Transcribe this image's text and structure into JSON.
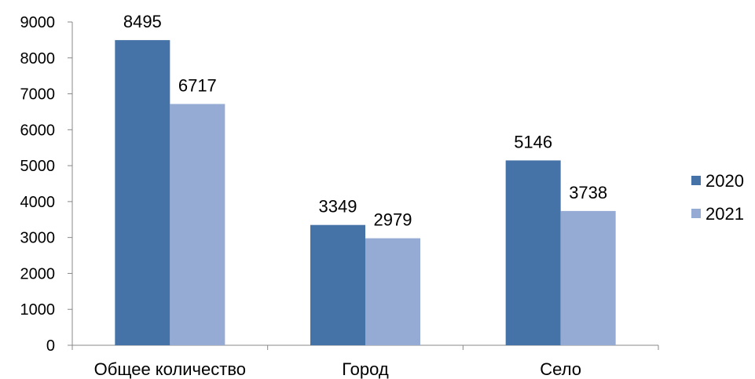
{
  "chart_data": {
    "type": "bar",
    "categories": [
      "Общее количество",
      "Город",
      "Село"
    ],
    "series": [
      {
        "name": "2020",
        "values": [
          8495,
          3349,
          5146
        ],
        "color": "#4572A7"
      },
      {
        "name": "2021",
        "values": [
          6717,
          2979,
          3738
        ],
        "color": "#95ABD3"
      }
    ],
    "ylim": [
      0,
      9000
    ],
    "yticks": [
      0,
      1000,
      2000,
      3000,
      4000,
      5000,
      6000,
      7000,
      8000,
      9000
    ],
    "grid": false,
    "legend_position": "right",
    "data_labels": true
  }
}
